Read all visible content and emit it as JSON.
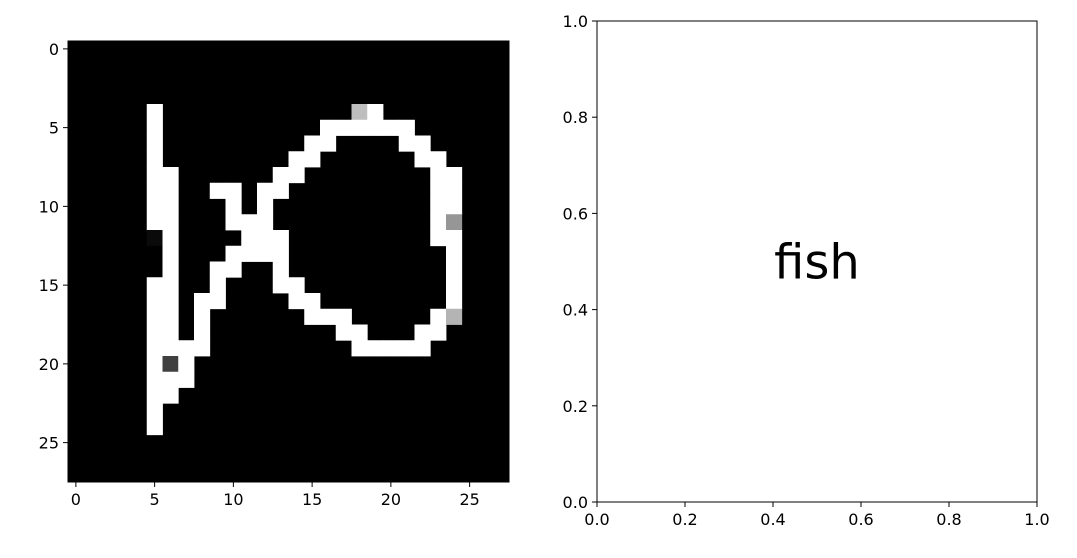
{
  "chart_data": [
    {
      "type": "heatmap",
      "title": "",
      "xlabel": "",
      "ylabel": "",
      "colormap": "gray",
      "value_range": [
        0,
        255
      ],
      "xlim": [
        -0.5,
        27.5
      ],
      "ylim": [
        27.5,
        -0.5
      ],
      "x_ticks": [
        0,
        5,
        10,
        15,
        20,
        25
      ],
      "y_ticks": [
        0,
        5,
        10,
        15,
        20,
        25
      ],
      "x_tick_labels": [
        "0",
        "5",
        "10",
        "15",
        "20",
        "25"
      ],
      "y_tick_labels": [
        "0",
        "5",
        "10",
        "15",
        "20",
        "25"
      ],
      "grid": false,
      "width": 28,
      "height": 28,
      "background_value": 0,
      "pixels": [
        [
          5,
          4,
          255
        ],
        [
          5,
          5,
          255
        ],
        [
          5,
          6,
          255
        ],
        [
          5,
          7,
          255
        ],
        [
          5,
          8,
          255
        ],
        [
          5,
          9,
          255
        ],
        [
          5,
          10,
          255
        ],
        [
          5,
          11,
          255
        ],
        [
          5,
          12,
          10
        ],
        [
          5,
          13,
          0
        ],
        [
          5,
          15,
          255
        ],
        [
          5,
          16,
          255
        ],
        [
          5,
          17,
          255
        ],
        [
          5,
          18,
          255
        ],
        [
          5,
          19,
          255
        ],
        [
          5,
          20,
          255
        ],
        [
          5,
          21,
          255
        ],
        [
          5,
          22,
          255
        ],
        [
          5,
          23,
          255
        ],
        [
          5,
          24,
          255
        ],
        [
          6,
          8,
          255
        ],
        [
          6,
          9,
          255
        ],
        [
          6,
          10,
          255
        ],
        [
          6,
          11,
          255
        ],
        [
          6,
          12,
          255
        ],
        [
          6,
          13,
          255
        ],
        [
          6,
          14,
          255
        ],
        [
          6,
          15,
          255
        ],
        [
          6,
          16,
          255
        ],
        [
          6,
          17,
          255
        ],
        [
          6,
          18,
          255
        ],
        [
          6,
          19,
          255
        ],
        [
          6,
          20,
          64
        ],
        [
          6,
          21,
          255
        ],
        [
          6,
          22,
          255
        ],
        [
          7,
          19,
          255
        ],
        [
          7,
          20,
          255
        ],
        [
          7,
          21,
          255
        ],
        [
          8,
          16,
          255
        ],
        [
          8,
          17,
          255
        ],
        [
          8,
          18,
          255
        ],
        [
          8,
          19,
          255
        ],
        [
          9,
          9,
          255
        ],
        [
          9,
          14,
          255
        ],
        [
          9,
          15,
          255
        ],
        [
          9,
          16,
          255
        ],
        [
          10,
          9,
          255
        ],
        [
          10,
          10,
          255
        ],
        [
          10,
          11,
          255
        ],
        [
          10,
          13,
          255
        ],
        [
          10,
          14,
          255
        ],
        [
          11,
          11,
          255
        ],
        [
          11,
          12,
          255
        ],
        [
          11,
          13,
          255
        ],
        [
          12,
          9,
          255
        ],
        [
          12,
          10,
          255
        ],
        [
          12,
          11,
          255
        ],
        [
          12,
          12,
          255
        ],
        [
          12,
          13,
          255
        ],
        [
          13,
          8,
          255
        ],
        [
          13,
          9,
          255
        ],
        [
          13,
          12,
          255
        ],
        [
          13,
          13,
          255
        ],
        [
          13,
          14,
          255
        ],
        [
          13,
          15,
          255
        ],
        [
          14,
          7,
          255
        ],
        [
          14,
          8,
          255
        ],
        [
          14,
          15,
          255
        ],
        [
          14,
          16,
          255
        ],
        [
          15,
          6,
          255
        ],
        [
          15,
          7,
          255
        ],
        [
          15,
          16,
          255
        ],
        [
          15,
          17,
          255
        ],
        [
          16,
          5,
          255
        ],
        [
          16,
          6,
          255
        ],
        [
          16,
          17,
          255
        ],
        [
          17,
          5,
          255
        ],
        [
          17,
          17,
          255
        ],
        [
          17,
          18,
          255
        ],
        [
          18,
          4,
          190
        ],
        [
          18,
          5,
          255
        ],
        [
          18,
          18,
          255
        ],
        [
          18,
          19,
          255
        ],
        [
          19,
          4,
          255
        ],
        [
          19,
          5,
          255
        ],
        [
          19,
          19,
          255
        ],
        [
          20,
          5,
          255
        ],
        [
          20,
          19,
          255
        ],
        [
          21,
          5,
          255
        ],
        [
          21,
          6,
          255
        ],
        [
          21,
          19,
          255
        ],
        [
          22,
          6,
          255
        ],
        [
          22,
          7,
          255
        ],
        [
          22,
          18,
          255
        ],
        [
          22,
          19,
          255
        ],
        [
          23,
          7,
          255
        ],
        [
          23,
          8,
          255
        ],
        [
          23,
          9,
          255
        ],
        [
          23,
          10,
          255
        ],
        [
          23,
          11,
          255
        ],
        [
          23,
          12,
          255
        ],
        [
          23,
          17,
          255
        ],
        [
          23,
          18,
          255
        ],
        [
          24,
          8,
          255
        ],
        [
          24,
          9,
          255
        ],
        [
          24,
          10,
          255
        ],
        [
          24,
          11,
          150
        ],
        [
          24,
          12,
          255
        ],
        [
          24,
          13,
          255
        ],
        [
          24,
          14,
          255
        ],
        [
          24,
          15,
          255
        ],
        [
          24,
          16,
          255
        ],
        [
          24,
          17,
          180
        ]
      ]
    },
    {
      "type": "scatter",
      "title": "",
      "xlabel": "",
      "ylabel": "",
      "xlim": [
        0.0,
        1.0
      ],
      "ylim": [
        0.0,
        1.0
      ],
      "x_ticks": [
        0.0,
        0.2,
        0.4,
        0.6,
        0.8,
        1.0
      ],
      "y_ticks": [
        0.0,
        0.2,
        0.4,
        0.6,
        0.8,
        1.0
      ],
      "x_tick_labels": [
        "0.0",
        "0.2",
        "0.4",
        "0.6",
        "0.8",
        "1.0"
      ],
      "y_tick_labels": [
        "0.0",
        "0.2",
        "0.4",
        "0.6",
        "0.8",
        "1.0"
      ],
      "grid": false,
      "annotations": [
        {
          "text": "fish",
          "x": 0.5,
          "y": 0.5
        }
      ]
    }
  ]
}
